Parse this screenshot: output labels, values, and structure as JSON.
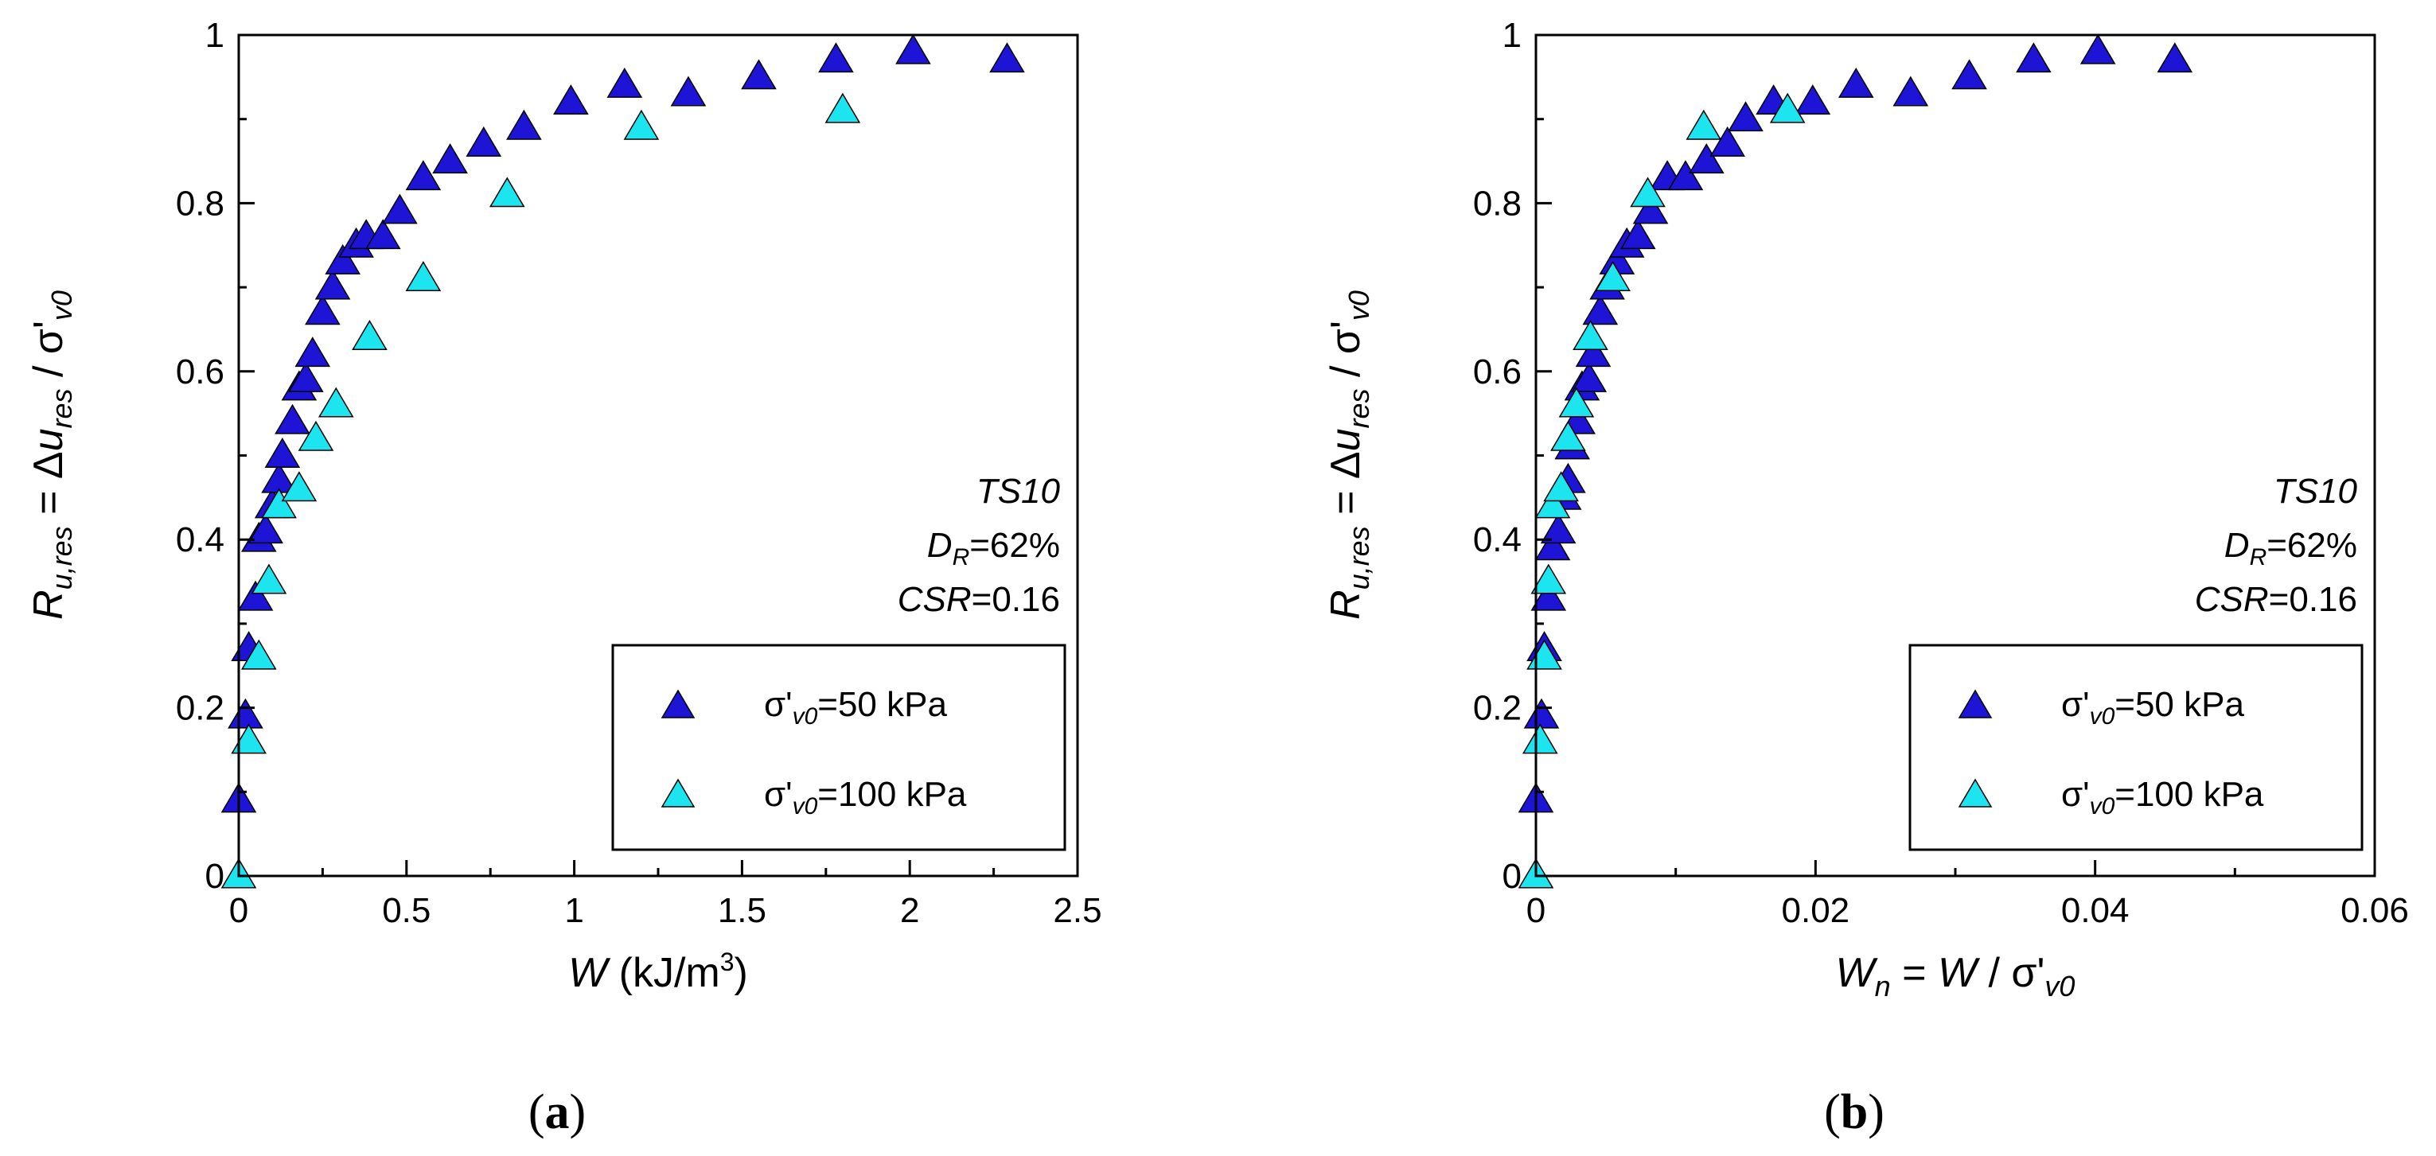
{
  "chart_data": [
    {
      "type": "scatter",
      "panel_label": "(a)",
      "panel_label_parts": [
        "(",
        "a",
        ")"
      ],
      "xlabel": "W (kJ/m3)",
      "xlabel_parts": [
        "W",
        " (kJ/m",
        "3",
        ")"
      ],
      "ylabel": "Ru,res = Δures / σ'v0",
      "ylabel_parts": [
        "R",
        "u,res",
        " = Δ",
        "u",
        "res",
        " / σ'",
        "v0"
      ],
      "xlim": [
        0,
        2.5
      ],
      "ylim": [
        0,
        1
      ],
      "xticks": [
        0,
        0.5,
        1,
        1.5,
        2,
        2.5
      ],
      "xtick_labels": [
        "0",
        "0.5",
        "1",
        "1.5",
        "2",
        "2.5"
      ],
      "yticks": [
        0,
        0.2,
        0.4,
        0.6,
        0.8,
        1
      ],
      "ytick_labels": [
        "0",
        "0.2",
        "0.4",
        "0.6",
        "0.8",
        "1"
      ],
      "annotation": {
        "test": "TS10",
        "dr_prefix": "D",
        "dr_sub": "R",
        "dr_value": "=62%",
        "csr_label": "CSR",
        "csr_value": "=0.16"
      },
      "legend": {
        "location": "bottom-right"
      },
      "series": [
        {
          "name": "σ'v0=50 kPa",
          "name_parts": [
            "σ'",
            "v0",
            "=50 kPa"
          ],
          "color": "#1d14d6",
          "x": [
            0.0,
            0.02,
            0.03,
            0.05,
            0.06,
            0.08,
            0.1,
            0.12,
            0.13,
            0.16,
            0.18,
            0.2,
            0.22,
            0.25,
            0.28,
            0.31,
            0.35,
            0.38,
            0.43,
            0.48,
            0.55,
            0.63,
            0.73,
            0.85,
            0.99,
            1.15,
            1.34,
            1.55,
            1.78,
            2.01,
            2.29
          ],
          "y": [
            0.09,
            0.19,
            0.27,
            0.33,
            0.4,
            0.41,
            0.44,
            0.47,
            0.5,
            0.54,
            0.58,
            0.59,
            0.62,
            0.67,
            0.7,
            0.73,
            0.75,
            0.76,
            0.76,
            0.79,
            0.83,
            0.85,
            0.87,
            0.89,
            0.92,
            0.94,
            0.93,
            0.95,
            0.97,
            0.98,
            0.97
          ]
        },
        {
          "name": "σ'v0=100 kPa",
          "name_parts": [
            "σ'",
            "v0",
            "=100 kPa"
          ],
          "color": "#1de5f0",
          "x": [
            0.0,
            0.03,
            0.06,
            0.09,
            0.12,
            0.18,
            0.23,
            0.29,
            0.39,
            0.55,
            0.8,
            1.2,
            1.8
          ],
          "y": [
            0.0,
            0.16,
            0.26,
            0.35,
            0.44,
            0.46,
            0.52,
            0.56,
            0.64,
            0.71,
            0.81,
            0.89,
            0.91
          ]
        }
      ]
    },
    {
      "type": "scatter",
      "panel_label": "(b)",
      "panel_label_parts": [
        "(",
        "b",
        ")"
      ],
      "xlabel": "Wn = W / σ'v0",
      "xlabel_parts": [
        "W",
        "n",
        " = ",
        "W",
        " / σ'",
        "v0"
      ],
      "ylabel": "Ru,res = Δures / σ'v0",
      "ylabel_parts": [
        "R",
        "u,res",
        " = Δ",
        "u",
        "res",
        " / σ'",
        "v0"
      ],
      "xlim": [
        0,
        0.06
      ],
      "ylim": [
        0,
        1
      ],
      "xticks": [
        0,
        0.02,
        0.04,
        0.06
      ],
      "xtick_labels": [
        "0",
        "0.02",
        "0.04",
        "0.06"
      ],
      "yticks": [
        0,
        0.2,
        0.4,
        0.6,
        0.8,
        1
      ],
      "ytick_labels": [
        "0",
        "0.2",
        "0.4",
        "0.6",
        "0.8",
        "1"
      ],
      "annotation": {
        "test": "TS10",
        "dr_prefix": "D",
        "dr_sub": "R",
        "dr_value": "=62%",
        "csr_label": "CSR",
        "csr_value": "=0.16"
      },
      "legend": {
        "location": "bottom-right"
      },
      "series": [
        {
          "name": "σ'v0=50 kPa",
          "name_parts": [
            "σ'",
            "v0",
            "=50 kPa"
          ],
          "color": "#1d14d6",
          "x": [
            0.0,
            0.0004,
            0.0006,
            0.0009,
            0.0012,
            0.0016,
            0.002,
            0.0023,
            0.0026,
            0.003,
            0.0033,
            0.0038,
            0.0041,
            0.0046,
            0.0051,
            0.0058,
            0.0065,
            0.0073,
            0.0082,
            0.0094,
            0.0107,
            0.0122,
            0.0137,
            0.015,
            0.017,
            0.0198,
            0.0229,
            0.0268,
            0.031,
            0.0356,
            0.0402,
            0.0457
          ],
          "y": [
            0.09,
            0.19,
            0.27,
            0.33,
            0.39,
            0.41,
            0.45,
            0.47,
            0.51,
            0.54,
            0.58,
            0.59,
            0.62,
            0.67,
            0.7,
            0.73,
            0.75,
            0.76,
            0.79,
            0.83,
            0.83,
            0.85,
            0.87,
            0.9,
            0.92,
            0.92,
            0.94,
            0.93,
            0.95,
            0.97,
            0.98,
            0.97
          ]
        },
        {
          "name": "σ'v0=100 kPa",
          "name_parts": [
            "σ'",
            "v0",
            "=100 kPa"
          ],
          "color": "#1de5f0",
          "x": [
            0.0,
            0.0003,
            0.0006,
            0.0009,
            0.0012,
            0.0018,
            0.0023,
            0.0029,
            0.0039,
            0.0055,
            0.008,
            0.012,
            0.018
          ],
          "y": [
            0.0,
            0.16,
            0.26,
            0.35,
            0.44,
            0.46,
            0.52,
            0.56,
            0.64,
            0.71,
            0.81,
            0.89,
            0.91
          ]
        }
      ]
    }
  ]
}
